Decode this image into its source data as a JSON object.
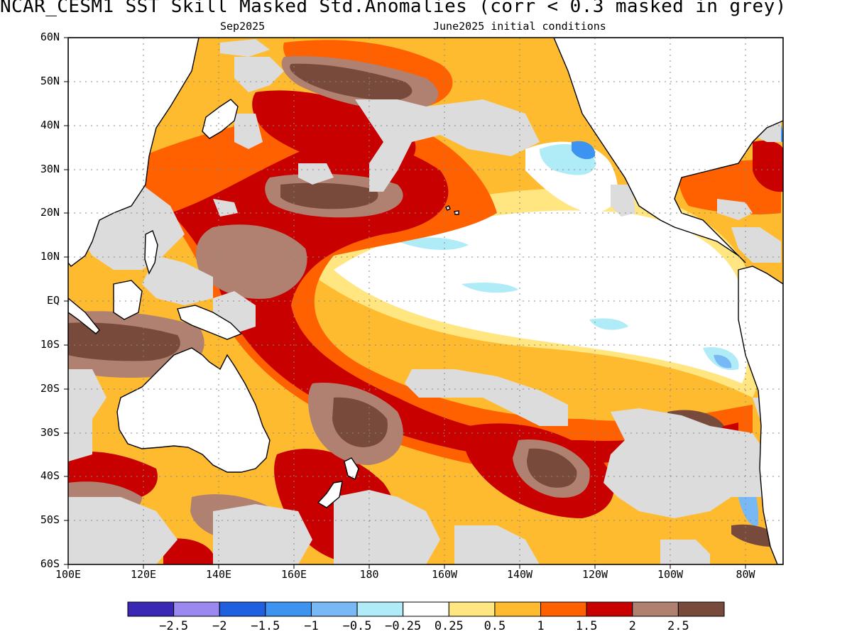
{
  "header": {
    "title": "NCAR_CESM1  SST Skill Masked Std.Anomalies (corr < 0.3 masked in grey)",
    "valid_month": "Sep2025",
    "init": "June2025 initial conditions"
  },
  "map": {
    "lat_labels": [
      "60N",
      "50N",
      "40N",
      "30N",
      "20N",
      "10N",
      "EQ",
      "10S",
      "20S",
      "30S",
      "40S",
      "50S",
      "60S"
    ],
    "lon_labels": [
      "100E",
      "120E",
      "140E",
      "160E",
      "180",
      "160W",
      "140W",
      "120W",
      "100W",
      "80W"
    ],
    "lat_range": [
      -60,
      60
    ],
    "lon_range": [
      100,
      290
    ],
    "colors": {
      "mask": "#dcdcdc",
      "land": "#ffffff",
      "coast": "#000000"
    }
  },
  "colorbar": {
    "colors": [
      "#3a28b4",
      "#9b88f0",
      "#1f60e0",
      "#3c94f0",
      "#78b8f5",
      "#b0ecf8",
      "#ffffff",
      "#ffe680",
      "#ffbb30",
      "#ff6000",
      "#c80000",
      "#b08070",
      "#784a3c"
    ],
    "labels": [
      "−2.5",
      "−2",
      "−1.5",
      "−1",
      "−0.5",
      "−0.25",
      "0.25",
      "0.5",
      "1",
      "1.5",
      "2",
      "2.5"
    ]
  }
}
